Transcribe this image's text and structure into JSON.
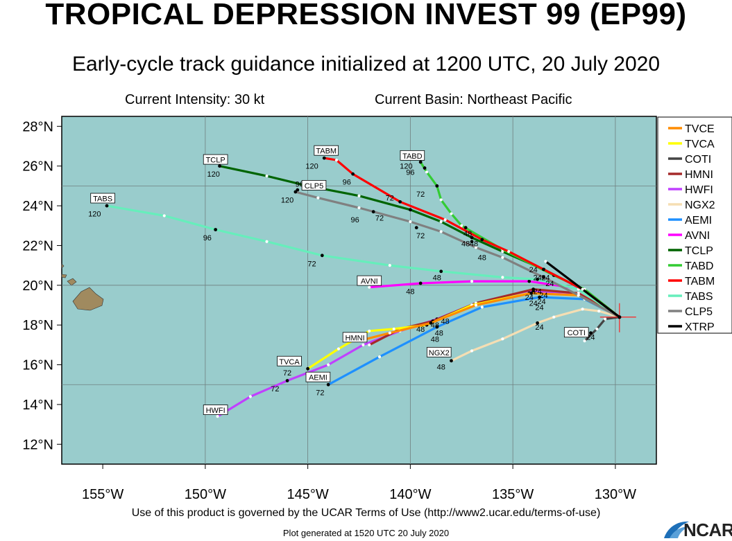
{
  "header": {
    "title": "TROPICAL DEPRESSION INVEST 99 (EP99)",
    "subtitle": "Early-cycle track guidance initialized at 1200 UTC, 20 July 2020",
    "intensity": "Current Intensity: 30 kt",
    "basin": "Current Basin: Northeast Pacific"
  },
  "footer": {
    "terms": "Use of this product is governed by the UCAR Terms of Use (http://www2.ucar.edu/terms-of-use)",
    "generated": "Plot generated at 1520 UTC   20 July 2020",
    "logo": "NCAR"
  },
  "colors": {
    "ocean": "#99cccc",
    "land": "#a08a5f",
    "grid": "#6f7f7f"
  },
  "map": {
    "lon_range": [
      -157,
      -128
    ],
    "lat_range": [
      11,
      28.5
    ],
    "lon_ticks": [
      -155,
      -150,
      -145,
      -140,
      -135,
      -130
    ],
    "lat_ticks": [
      12,
      14,
      16,
      18,
      20,
      22,
      24,
      26,
      28
    ],
    "lon_tick_labels": [
      "155°W",
      "150°W",
      "145°W",
      "140°W",
      "135°W",
      "130°W"
    ],
    "lat_tick_labels": [
      "12°N",
      "14°N",
      "16°N",
      "18°N",
      "20°N",
      "22°N",
      "24°N",
      "26°N",
      "28°N"
    ],
    "gridlines": {
      "lon": [
        -150,
        -145,
        -140,
        -135,
        -130
      ],
      "lat": [
        15,
        20,
        25
      ]
    },
    "storm_position": [
      -129.8,
      18.4
    ]
  },
  "legend": [
    {
      "name": "TVCE",
      "color": "#ff8c00"
    },
    {
      "name": "TVCA",
      "color": "#ffff00"
    },
    {
      "name": "COTI",
      "color": "#444444"
    },
    {
      "name": "HMNI",
      "color": "#a52a2a"
    },
    {
      "name": "HWFI",
      "color": "#c040ff"
    },
    {
      "name": "NGX2",
      "color": "#f5deb3"
    },
    {
      "name": "AEMI",
      "color": "#1e90ff"
    },
    {
      "name": "AVNI",
      "color": "#ff00ff"
    },
    {
      "name": "TCLP",
      "color": "#006400"
    },
    {
      "name": "TABD",
      "color": "#33cc33"
    },
    {
      "name": "TABM",
      "color": "#ff0000"
    },
    {
      "name": "TABS",
      "color": "#66eebb"
    },
    {
      "name": "CLP5",
      "color": "#808080"
    },
    {
      "name": "XTRP",
      "color": "#000000"
    }
  ],
  "tracks": [
    {
      "name": "NGX2",
      "color": "#f5deb3",
      "label": "NGX2",
      "label_at": [
        -138.6,
        16.6
      ],
      "points": [
        [
          -129.8,
          18.4
        ],
        [
          -130.8,
          18.7
        ],
        [
          -131.6,
          18.8
        ],
        [
          -133.0,
          18.4
        ],
        [
          -133.8,
          18.1
        ],
        [
          -135.5,
          17.3
        ],
        [
          -137.0,
          16.7
        ],
        [
          -138.0,
          16.2
        ]
      ],
      "times": [
        {
          "t": "24",
          "at": [
            -133.8,
            18.1
          ]
        },
        {
          "t": "48",
          "at": [
            -138.0,
            16.2
          ]
        }
      ]
    },
    {
      "name": "COTI",
      "color": "#444444",
      "label": "COTI",
      "label_at": [
        -131.9,
        17.6
      ],
      "points": [
        [
          -129.8,
          18.4
        ],
        [
          -130.5,
          18.3
        ],
        [
          -130.9,
          17.8
        ],
        [
          -131.5,
          17.2
        ]
      ],
      "times": [
        {
          "t": "24",
          "at": [
            -131.2,
            17.6
          ]
        }
      ]
    },
    {
      "name": "AEMI",
      "color": "#1e90ff",
      "label": "AEMI",
      "label_at": [
        -144.5,
        15.35
      ],
      "points": [
        [
          -129.8,
          18.4
        ],
        [
          -131.5,
          19.3
        ],
        [
          -133.7,
          19.4
        ],
        [
          -136.5,
          18.9
        ],
        [
          -138.7,
          17.9
        ],
        [
          -141.5,
          16.4
        ],
        [
          -144.0,
          15.0
        ]
      ],
      "times": [
        {
          "t": "24",
          "at": [
            -133.7,
            19.4
          ]
        },
        {
          "t": "48",
          "at": [
            -138.7,
            17.9
          ]
        },
        {
          "t": "72",
          "at": [
            -144.0,
            15.0
          ]
        }
      ]
    },
    {
      "name": "HWFI",
      "color": "#c040ff",
      "label": "HWFI",
      "label_at": [
        -149.5,
        13.7
      ],
      "points": [
        [
          -129.8,
          18.4
        ],
        [
          -131.8,
          19.6
        ],
        [
          -134.0,
          19.7
        ],
        [
          -136.8,
          19.1
        ],
        [
          -138.7,
          18.3
        ],
        [
          -140.5,
          17.7
        ],
        [
          -142.3,
          17.0
        ],
        [
          -144.0,
          16.0
        ],
        [
          -146.0,
          15.2
        ],
        [
          -147.8,
          14.4
        ],
        [
          -149.4,
          13.4
        ]
      ],
      "times": [
        {
          "t": "24",
          "at": [
            -134.0,
            19.7
          ]
        },
        {
          "t": "48",
          "at": [
            -138.7,
            18.3
          ]
        },
        {
          "t": "72",
          "at": [
            -146.0,
            15.2
          ]
        }
      ]
    },
    {
      "name": "HMNI",
      "color": "#a52a2a",
      "label": "HMNI",
      "label_at": [
        -142.7,
        17.35
      ],
      "points": [
        [
          -129.8,
          18.4
        ],
        [
          -131.8,
          19.6
        ],
        [
          -134.0,
          19.8
        ],
        [
          -136.8,
          19.1
        ],
        [
          -138.9,
          18.2
        ],
        [
          -140.5,
          17.8
        ],
        [
          -142.0,
          17.0
        ]
      ],
      "times": [
        {
          "t": "24",
          "at": [
            -134.0,
            19.8
          ]
        },
        {
          "t": "48",
          "at": [
            -138.9,
            18.2
          ]
        }
      ]
    },
    {
      "name": "TVCA",
      "color": "#ffff00",
      "label": "TVCA",
      "label_at": [
        -145.9,
        16.15
      ],
      "points": [
        [
          -129.8,
          18.4
        ],
        [
          -131.8,
          19.5
        ],
        [
          -134.2,
          19.6
        ],
        [
          -137.0,
          19.0
        ],
        [
          -139.2,
          18.0
        ],
        [
          -140.8,
          17.8
        ],
        [
          -142.0,
          17.7
        ],
        [
          -143.5,
          16.8
        ],
        [
          -145.0,
          15.8
        ]
      ],
      "times": [
        {
          "t": "24",
          "at": [
            -134.2,
            19.6
          ]
        },
        {
          "t": "48",
          "at": [
            -139.2,
            18.0
          ]
        },
        {
          "t": "72",
          "at": [
            -145.0,
            15.8
          ]
        }
      ]
    },
    {
      "name": "TVCE",
      "color": "#ff8c00",
      "label": "",
      "label_at": null,
      "points": [
        [
          -129.8,
          18.4
        ],
        [
          -131.8,
          19.5
        ],
        [
          -134.1,
          19.6
        ],
        [
          -136.8,
          19.0
        ],
        [
          -139.0,
          18.1
        ],
        [
          -141.0,
          17.6
        ],
        [
          -142.5,
          17.2
        ]
      ],
      "times": [
        {
          "t": "24",
          "at": [
            -134.1,
            19.6
          ]
        },
        {
          "t": "48",
          "at": [
            -139.0,
            18.1
          ]
        }
      ]
    },
    {
      "name": "AVNI",
      "color": "#ff00ff",
      "label": "AVNI",
      "label_at": [
        -142.0,
        20.2
      ],
      "points": [
        [
          -129.8,
          18.4
        ],
        [
          -131.6,
          19.8
        ],
        [
          -134.2,
          20.2
        ],
        [
          -137.0,
          20.2
        ],
        [
          -139.5,
          20.1
        ],
        [
          -142.0,
          19.9
        ]
      ],
      "times": [
        {
          "t": "24",
          "at": [
            -134.2,
            20.2
          ]
        },
        {
          "t": "48",
          "at": [
            -139.5,
            20.1
          ]
        }
      ]
    },
    {
      "name": "TABS",
      "color": "#66eebb",
      "label": "TABS",
      "label_at": [
        -155.0,
        24.35
      ],
      "points": [
        [
          -129.8,
          18.4
        ],
        [
          -131.8,
          19.8
        ],
        [
          -133.8,
          20.3
        ],
        [
          -135.5,
          20.4
        ],
        [
          -138.5,
          20.7
        ],
        [
          -141.0,
          21.0
        ],
        [
          -144.3,
          21.5
        ],
        [
          -147.0,
          22.2
        ],
        [
          -149.5,
          22.8
        ],
        [
          -152.0,
          23.5
        ],
        [
          -154.8,
          24.0
        ]
      ],
      "times": [
        {
          "t": "24",
          "at": [
            -133.8,
            20.3
          ]
        },
        {
          "t": "48",
          "at": [
            -138.5,
            20.7
          ]
        },
        {
          "t": "72",
          "at": [
            -144.3,
            21.5
          ]
        },
        {
          "t": "96",
          "at": [
            -149.5,
            22.8
          ]
        },
        {
          "t": "120",
          "at": [
            -154.8,
            24.0
          ]
        }
      ]
    },
    {
      "name": "TCLP",
      "color": "#006400",
      "label": "TCLP",
      "label_at": [
        -149.5,
        26.3
      ],
      "points": [
        [
          -129.8,
          18.4
        ],
        [
          -131.6,
          19.8
        ],
        [
          -133.5,
          20.8
        ],
        [
          -135.5,
          21.7
        ],
        [
          -137.0,
          22.4
        ],
        [
          -138.5,
          23.2
        ],
        [
          -140.0,
          23.8
        ],
        [
          -142.5,
          24.5
        ],
        [
          -145.0,
          25.0
        ],
        [
          -147.0,
          25.5
        ],
        [
          -149.3,
          26.0
        ]
      ],
      "times": [
        {
          "t": "24",
          "at": [
            -133.5,
            20.8
          ]
        },
        {
          "t": "48",
          "at": [
            -137.0,
            22.4
          ]
        },
        {
          "t": "72",
          "at": [
            -140.0,
            23.8
          ]
        },
        {
          "t": "96",
          "at": [
            -145.5,
            24.8
          ]
        },
        {
          "t": "120",
          "at": [
            -149.3,
            26.0
          ]
        }
      ]
    },
    {
      "name": "TABD",
      "color": "#33cc33",
      "label": "TABD",
      "label_at": [
        -139.9,
        26.5
      ],
      "points": [
        [
          -129.8,
          18.4
        ],
        [
          -131.5,
          19.8
        ],
        [
          -133.0,
          20.5
        ],
        [
          -135.5,
          21.8
        ],
        [
          -137.5,
          23.0
        ],
        [
          -138.0,
          23.6
        ],
        [
          -138.5,
          24.3
        ],
        [
          -138.7,
          25.0
        ],
        [
          -139.2,
          25.7
        ],
        [
          -139.5,
          26.2
        ]
      ],
      "times": [
        {
          "t": "24",
          "at": [
            -133.0,
            20.5
          ]
        },
        {
          "t": "48",
          "at": [
            -137.3,
            22.9
          ]
        },
        {
          "t": "72",
          "at": [
            -138.7,
            25.0
          ]
        },
        {
          "t": "96",
          "at": [
            -139.3,
            25.9
          ]
        },
        {
          "t": "120",
          "at": [
            -139.5,
            26.2
          ]
        }
      ]
    },
    {
      "name": "TABM",
      "color": "#ff0000",
      "label": "TABM",
      "label_at": [
        -144.1,
        26.75
      ],
      "points": [
        [
          -129.8,
          18.4
        ],
        [
          -131.6,
          19.8
        ],
        [
          -133.5,
          20.8
        ],
        [
          -135.2,
          21.7
        ],
        [
          -136.5,
          22.3
        ],
        [
          -138.3,
          23.3
        ],
        [
          -140.5,
          24.2
        ],
        [
          -142.8,
          25.6
        ],
        [
          -143.6,
          26.3
        ],
        [
          -144.2,
          26.4
        ]
      ],
      "times": [
        {
          "t": "24",
          "at": [
            -133.5,
            20.8
          ]
        },
        {
          "t": "48",
          "at": [
            -136.5,
            22.3
          ]
        },
        {
          "t": "72",
          "at": [
            -140.5,
            24.2
          ]
        },
        {
          "t": "96",
          "at": [
            -142.8,
            25.6
          ]
        },
        {
          "t": "120",
          "at": [
            -144.2,
            26.4
          ]
        }
      ]
    },
    {
      "name": "CLP5",
      "color": "#808080",
      "label": "CLP5",
      "label_at": [
        -144.7,
        25.0
      ],
      "points": [
        [
          -129.8,
          18.4
        ],
        [
          -131.8,
          19.5
        ],
        [
          -133.5,
          20.4
        ],
        [
          -135.5,
          21.4
        ],
        [
          -136.8,
          21.9
        ],
        [
          -138.5,
          22.7
        ],
        [
          -140.0,
          23.2
        ],
        [
          -142.5,
          23.9
        ],
        [
          -144.5,
          24.4
        ],
        [
          -145.6,
          24.7
        ]
      ],
      "times": [
        {
          "t": "24",
          "at": [
            -133.5,
            20.4
          ]
        },
        {
          "t": "48",
          "at": [
            -137.0,
            22.2
          ]
        },
        {
          "t": "72",
          "at": [
            -139.7,
            22.9
          ]
        },
        {
          "t": "96",
          "at": [
            -141.8,
            23.7
          ]
        },
        {
          "t": "120",
          "at": [
            -145.6,
            24.7
          ]
        }
      ]
    },
    {
      "name": "XTRP",
      "color": "#000000",
      "label": "",
      "label_at": null,
      "points": [
        [
          -129.8,
          18.4
        ],
        [
          -131.6,
          19.8
        ],
        [
          -133.4,
          21.2
        ]
      ],
      "times": []
    }
  ],
  "time_labels": [
    {
      "t": "120",
      "at": [
        -149.6,
        25.6
      ]
    },
    {
      "t": "96",
      "at": [
        -149.9,
        22.4
      ]
    },
    {
      "t": "120",
      "at": [
        -155.4,
        23.6
      ]
    },
    {
      "t": "72",
      "at": [
        -144.8,
        21.1
      ]
    },
    {
      "t": "96",
      "at": [
        -145.4,
        25.1
      ]
    },
    {
      "t": "120",
      "at": [
        -146.0,
        24.3
      ]
    },
    {
      "t": "120",
      "at": [
        -144.8,
        26.0
      ]
    },
    {
      "t": "96",
      "at": [
        -143.1,
        25.2
      ]
    },
    {
      "t": "96",
      "at": [
        -142.7,
        23.3
      ]
    },
    {
      "t": "72",
      "at": [
        -141.5,
        23.4
      ]
    },
    {
      "t": "72",
      "at": [
        -141.0,
        24.4
      ]
    },
    {
      "t": "120",
      "at": [
        -140.2,
        26.0
      ]
    },
    {
      "t": "96",
      "at": [
        -140.0,
        25.7
      ]
    },
    {
      "t": "72",
      "at": [
        -139.5,
        24.6
      ]
    },
    {
      "t": "72",
      "at": [
        -139.5,
        22.5
      ]
    },
    {
      "t": "48",
      "at": [
        -137.2,
        22.6
      ]
    },
    {
      "t": "48",
      "at": [
        -137.3,
        22.1
      ]
    },
    {
      "t": "48",
      "at": [
        -136.9,
        22.1
      ]
    },
    {
      "t": "48",
      "at": [
        -136.5,
        21.4
      ]
    },
    {
      "t": "48",
      "at": [
        -138.7,
        20.4
      ]
    },
    {
      "t": "48",
      "at": [
        -140.0,
        19.7
      ]
    },
    {
      "t": "24",
      "at": [
        -134.0,
        20.8
      ]
    },
    {
      "t": "24",
      "at": [
        -133.8,
        20.4
      ]
    },
    {
      "t": "24",
      "at": [
        -133.4,
        20.4
      ]
    },
    {
      "t": "24",
      "at": [
        -133.2,
        20.1
      ]
    },
    {
      "t": "24",
      "at": [
        -133.8,
        19.7
      ]
    },
    {
      "t": "24",
      "at": [
        -133.5,
        19.5
      ]
    },
    {
      "t": "24",
      "at": [
        -134.2,
        19.4
      ]
    },
    {
      "t": "24",
      "at": [
        -133.6,
        19.2
      ]
    },
    {
      "t": "24",
      "at": [
        -134.0,
        19.1
      ]
    },
    {
      "t": "24",
      "at": [
        -133.7,
        18.9
      ]
    },
    {
      "t": "48",
      "at": [
        -139.5,
        17.8
      ]
    },
    {
      "t": "48",
      "at": [
        -138.8,
        18.0
      ]
    },
    {
      "t": "48",
      "at": [
        -138.6,
        17.6
      ]
    },
    {
      "t": "48",
      "at": [
        -138.8,
        17.3
      ]
    },
    {
      "t": "48",
      "at": [
        -138.3,
        18.2
      ]
    },
    {
      "t": "72",
      "at": [
        -146.0,
        15.6
      ]
    },
    {
      "t": "72",
      "at": [
        -146.6,
        14.8
      ]
    },
    {
      "t": "72",
      "at": [
        -144.4,
        14.6
      ]
    },
    {
      "t": "24",
      "at": [
        -133.7,
        17.9
      ]
    },
    {
      "t": "48",
      "at": [
        -138.5,
        15.9
      ]
    },
    {
      "t": "24",
      "at": [
        -131.2,
        17.4
      ]
    }
  ]
}
